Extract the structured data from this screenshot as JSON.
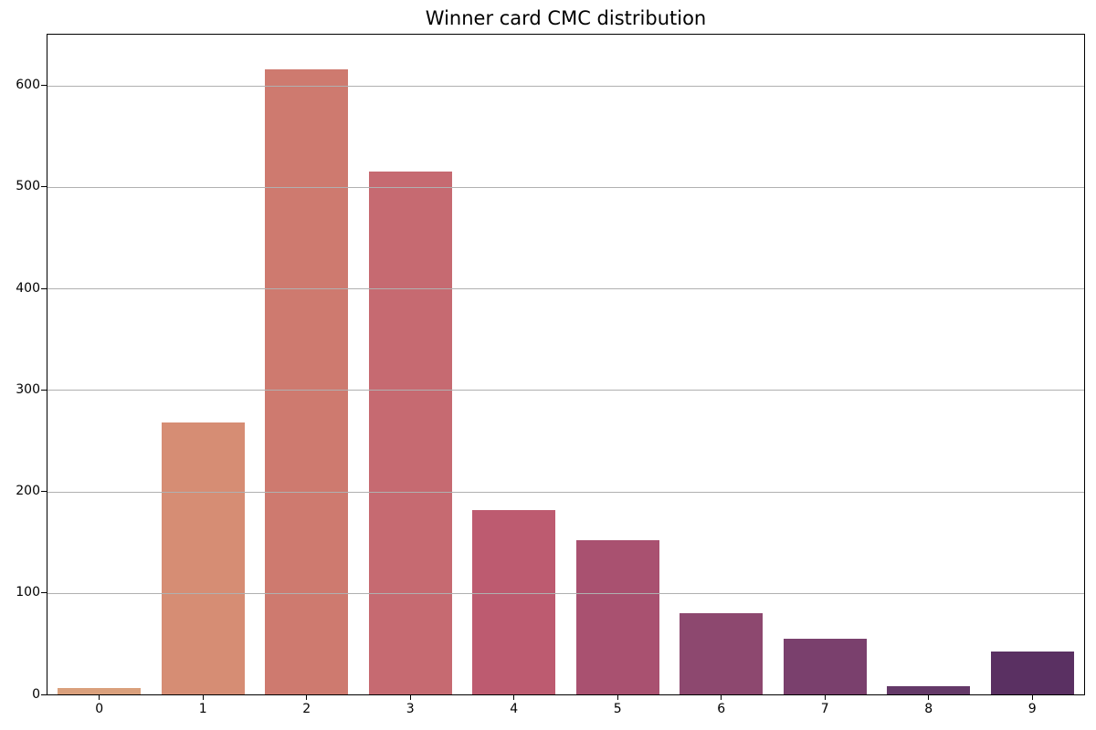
{
  "figure": {
    "background": "#ffffff",
    "spine_color": "#000000",
    "tick_color": "#000000"
  },
  "chart_data": {
    "type": "bar",
    "title": "Winner card CMC distribution",
    "xlabel": "",
    "ylabel": "",
    "categories": [
      "0",
      "1",
      "2",
      "3",
      "4",
      "5",
      "6",
      "7",
      "8",
      "9"
    ],
    "values": [
      6,
      268,
      616,
      515,
      182,
      152,
      80,
      55,
      8,
      42
    ],
    "bar_colors": [
      "#daa07c",
      "#d68d74",
      "#ce7a6f",
      "#c66a71",
      "#bd5b70",
      "#a95170",
      "#8d486f",
      "#7a406d",
      "#643968",
      "#5a3062"
    ],
    "ylim": [
      0,
      650
    ],
    "yticks": [
      0,
      100,
      200,
      300,
      400,
      500,
      600
    ],
    "grid": "horizontal",
    "grid_color": "#b0b0b0",
    "grid_above_bars": true,
    "bar_width_fraction": 0.8,
    "legend": "none"
  }
}
